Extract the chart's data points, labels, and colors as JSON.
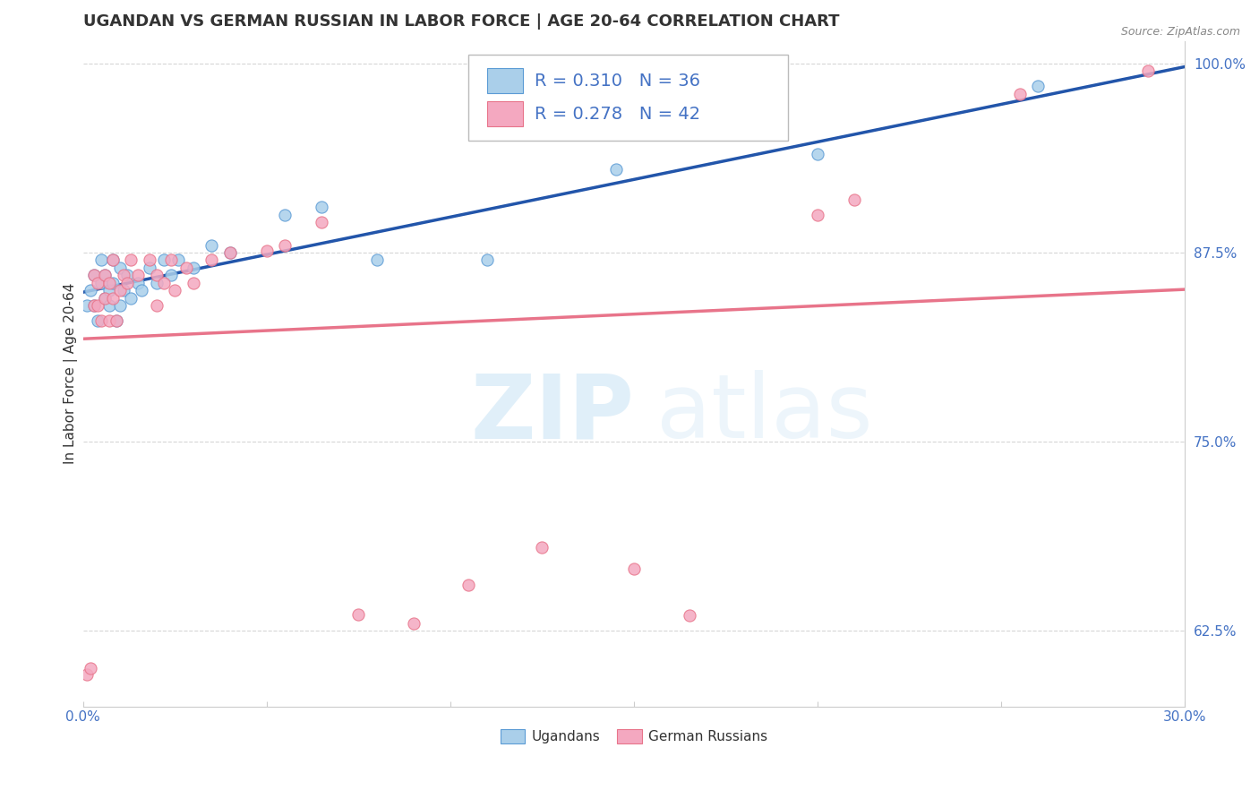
{
  "title": "UGANDAN VS GERMAN RUSSIAN IN LABOR FORCE | AGE 20-64 CORRELATION CHART",
  "source": "Source: ZipAtlas.com",
  "ylabel": "In Labor Force | Age 20-64",
  "xlim": [
    0.0,
    0.3
  ],
  "ylim": [
    0.575,
    1.015
  ],
  "yticks": [
    0.625,
    0.75,
    0.875,
    1.0
  ],
  "ytick_labels": [
    "62.5%",
    "75.0%",
    "87.5%",
    "100.0%"
  ],
  "xticks": [
    0.0,
    0.05,
    0.1,
    0.15,
    0.2,
    0.25,
    0.3
  ],
  "xtick_labels": [
    "0.0%",
    "",
    "",
    "",
    "",
    "",
    "30.0%"
  ],
  "R_ugandan": 0.31,
  "N_ugandan": 36,
  "R_german": 0.278,
  "N_german": 42,
  "ugandan_color": "#aacfea",
  "german_color": "#f4a8c0",
  "ugandan_edge_color": "#5b9bd5",
  "german_edge_color": "#e8748a",
  "ugandan_line_color": "#2255aa",
  "german_line_color": "#e8748a",
  "title_color": "#333333",
  "axis_color": "#4472c4",
  "background_color": "#ffffff",
  "grid_color": "#cccccc",
  "title_fontsize": 13,
  "label_fontsize": 11,
  "tick_fontsize": 11,
  "ugandan_x": [
    0.001,
    0.002,
    0.003,
    0.003,
    0.004,
    0.005,
    0.005,
    0.006,
    0.006,
    0.007,
    0.007,
    0.008,
    0.008,
    0.009,
    0.01,
    0.01,
    0.011,
    0.012,
    0.013,
    0.015,
    0.016,
    0.018,
    0.02,
    0.022,
    0.024,
    0.026,
    0.03,
    0.035,
    0.04,
    0.055,
    0.065,
    0.08,
    0.11,
    0.145,
    0.2,
    0.26
  ],
  "ugandan_y": [
    0.84,
    0.85,
    0.86,
    0.84,
    0.83,
    0.87,
    0.855,
    0.845,
    0.86,
    0.85,
    0.84,
    0.855,
    0.87,
    0.83,
    0.84,
    0.865,
    0.85,
    0.86,
    0.845,
    0.855,
    0.85,
    0.865,
    0.855,
    0.87,
    0.86,
    0.87,
    0.865,
    0.88,
    0.875,
    0.9,
    0.905,
    0.87,
    0.87,
    0.93,
    0.94,
    0.985
  ],
  "german_x": [
    0.001,
    0.002,
    0.003,
    0.003,
    0.004,
    0.004,
    0.005,
    0.006,
    0.006,
    0.007,
    0.007,
    0.008,
    0.008,
    0.009,
    0.01,
    0.011,
    0.012,
    0.013,
    0.015,
    0.018,
    0.02,
    0.02,
    0.022,
    0.024,
    0.025,
    0.028,
    0.03,
    0.035,
    0.04,
    0.05,
    0.055,
    0.065,
    0.075,
    0.09,
    0.105,
    0.125,
    0.15,
    0.165,
    0.2,
    0.21,
    0.255,
    0.29
  ],
  "german_y": [
    0.596,
    0.6,
    0.84,
    0.86,
    0.84,
    0.855,
    0.83,
    0.86,
    0.845,
    0.83,
    0.855,
    0.87,
    0.845,
    0.83,
    0.85,
    0.86,
    0.855,
    0.87,
    0.86,
    0.87,
    0.84,
    0.86,
    0.855,
    0.87,
    0.85,
    0.865,
    0.855,
    0.87,
    0.875,
    0.876,
    0.88,
    0.895,
    0.636,
    0.63,
    0.655,
    0.68,
    0.666,
    0.635,
    0.9,
    0.91,
    0.98,
    0.995
  ]
}
